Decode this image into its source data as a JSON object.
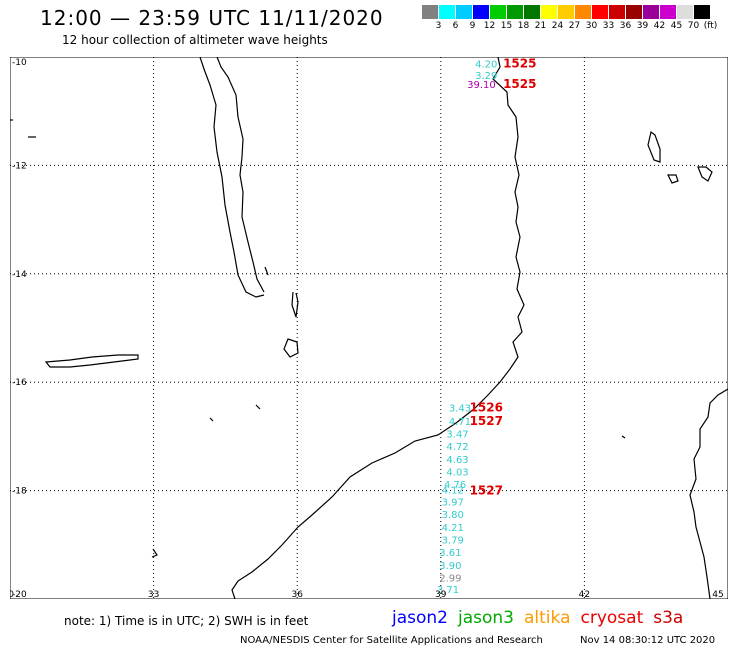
{
  "header": {
    "title": "12:00 — 23:59 UTC 11/11/2020",
    "subtitle": "12 hour collection of altimeter wave heights"
  },
  "colorbar": {
    "colors": [
      "#808080",
      "#00ffff",
      "#00ccff",
      "#0000ff",
      "#00cc00",
      "#009900",
      "#007700",
      "#ffff00",
      "#ffcc00",
      "#ff8800",
      "#ff0000",
      "#cc0000",
      "#990000",
      "#990099",
      "#cc00cc",
      "#dddddd",
      "#000000"
    ],
    "labels": [
      "3",
      "6",
      "9",
      "12",
      "15",
      "18",
      "21",
      "24",
      "27",
      "30",
      "33",
      "36",
      "39",
      "42",
      "45",
      "70",
      "(ft)"
    ]
  },
  "map": {
    "x_ticks": [
      "30",
      "33",
      "36",
      "39",
      "42",
      "45"
    ],
    "y_ticks": [
      "-10",
      "-12",
      "-14",
      "-16",
      "-18",
      "-20"
    ],
    "x_range": [
      30,
      45
    ],
    "y_range": [
      -20,
      -10
    ]
  },
  "observations": [
    {
      "lon": 39.95,
      "lat": -10.12,
      "value": "4.20",
      "color": "#33cccc"
    },
    {
      "lon": 39.95,
      "lat": -10.33,
      "value": "3.29",
      "color": "#33cccc"
    },
    {
      "lon": 39.85,
      "lat": -10.5,
      "value": "39.10",
      "color": "#aa00aa"
    },
    {
      "lon": 39.4,
      "lat": -16.47,
      "value": "3.43",
      "color": "#33cccc"
    },
    {
      "lon": 39.4,
      "lat": -16.72,
      "value": "4.71",
      "color": "#33cccc"
    },
    {
      "lon": 39.35,
      "lat": -16.95,
      "value": "3.47",
      "color": "#33cccc"
    },
    {
      "lon": 39.35,
      "lat": -17.18,
      "value": "4.72",
      "color": "#33cccc"
    },
    {
      "lon": 39.35,
      "lat": -17.42,
      "value": "4.63",
      "color": "#33cccc"
    },
    {
      "lon": 39.35,
      "lat": -17.65,
      "value": "4.03",
      "color": "#33cccc"
    },
    {
      "lon": 39.3,
      "lat": -17.88,
      "value": "4.76",
      "color": "#33cccc"
    },
    {
      "lon": 39.25,
      "lat": -17.98,
      "value": "4.12",
      "color": "#33cccc"
    },
    {
      "lon": 39.25,
      "lat": -18.2,
      "value": "3.97",
      "color": "#33cccc"
    },
    {
      "lon": 39.25,
      "lat": -18.43,
      "value": "3.80",
      "color": "#33cccc"
    },
    {
      "lon": 39.25,
      "lat": -18.67,
      "value": "4.21",
      "color": "#33cccc"
    },
    {
      "lon": 39.25,
      "lat": -18.9,
      "value": "3.79",
      "color": "#33cccc"
    },
    {
      "lon": 39.2,
      "lat": -19.13,
      "value": "3.61",
      "color": "#33cccc"
    },
    {
      "lon": 39.2,
      "lat": -19.37,
      "value": "3.90",
      "color": "#33cccc"
    },
    {
      "lon": 39.2,
      "lat": -19.6,
      "value": "2.99",
      "color": "#888888"
    },
    {
      "lon": 39.15,
      "lat": -19.82,
      "value": "3.71",
      "color": "#33cccc"
    }
  ],
  "time_labels": [
    {
      "lon": 40.65,
      "lat": -10.12,
      "value": "1525"
    },
    {
      "lon": 40.65,
      "lat": -10.5,
      "value": "1525"
    },
    {
      "lon": 39.95,
      "lat": -16.47,
      "value": "1526"
    },
    {
      "lon": 39.95,
      "lat": -16.72,
      "value": "1527"
    },
    {
      "lon": 39.95,
      "lat": -18.0,
      "value": "1527"
    }
  ],
  "footer": {
    "note": "note:  1) Time is in UTC;  2) SWH is in feet",
    "satellites": [
      {
        "name": "jason2",
        "color": "#0000ff"
      },
      {
        "name": "jason3",
        "color": "#00aa00"
      },
      {
        "name": "altika",
        "color": "#ff9900"
      },
      {
        "name": "cryosat",
        "color": "#ee0000"
      },
      {
        "name": "s3a",
        "color": "#cc0000"
      }
    ],
    "credit": "NOAA/NESDIS Center for Satellite Applications and Research",
    "generated": "Nov 14 08:30:12 UTC 2020"
  }
}
